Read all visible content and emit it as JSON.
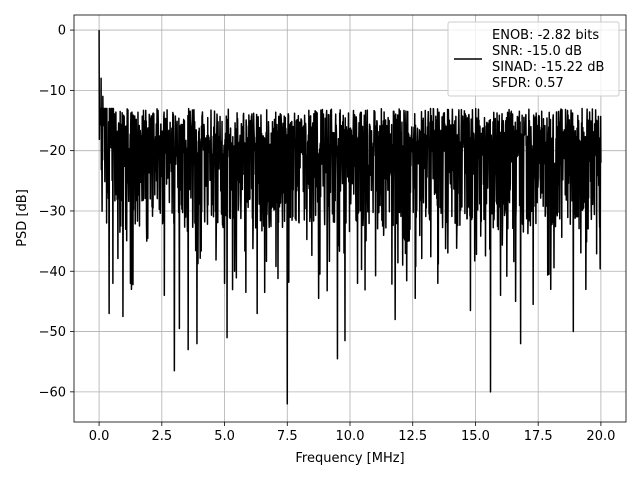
{
  "chart_data": {
    "type": "line",
    "title": "",
    "xlabel": "Frequency [MHz]",
    "ylabel": "PSD [dB]",
    "xlim": [
      -1.0,
      21.0
    ],
    "ylim": [
      -65.0,
      2.5
    ],
    "x_ticks": [
      0.0,
      2.5,
      5.0,
      7.5,
      10.0,
      12.5,
      15.0,
      17.5,
      20.0
    ],
    "x_tick_labels": [
      "0.0",
      "2.5",
      "5.0",
      "7.5",
      "10.0",
      "12.5",
      "15.0",
      "17.5",
      "20.0"
    ],
    "y_ticks": [
      0,
      -10,
      -20,
      -30,
      -40,
      -50,
      -60
    ],
    "y_tick_labels": [
      "0",
      "−10",
      "−20",
      "−30",
      "−40",
      "−50",
      "−60"
    ],
    "grid": true,
    "legend_position": "top-right",
    "series": [
      {
        "color": "#000000",
        "x_range": [
          0.0,
          20.0
        ],
        "noise_band": {
          "upper_typical": -15,
          "lower_typical": -42,
          "median": -25
        },
        "notable_points": [
          {
            "x": 0.0,
            "y": 0.0
          },
          {
            "x": 0.08,
            "y": -8.0
          },
          {
            "x": 0.15,
            "y": -11.0
          },
          {
            "x": 0.3,
            "y": -32.0
          },
          {
            "x": 0.4,
            "y": -47.0
          },
          {
            "x": 0.55,
            "y": -42.0
          },
          {
            "x": 0.95,
            "y": -47.5
          },
          {
            "x": 1.25,
            "y": -42.0
          },
          {
            "x": 1.9,
            "y": -35.0
          },
          {
            "x": 2.6,
            "y": -44.0
          },
          {
            "x": 3.0,
            "y": -56.5
          },
          {
            "x": 3.2,
            "y": -49.5
          },
          {
            "x": 3.55,
            "y": -53.0
          },
          {
            "x": 3.9,
            "y": -52.0
          },
          {
            "x": 5.0,
            "y": -42.0
          },
          {
            "x": 5.1,
            "y": -51.0
          },
          {
            "x": 5.4,
            "y": -40.0
          },
          {
            "x": 5.85,
            "y": -43.5
          },
          {
            "x": 6.3,
            "y": -47.0
          },
          {
            "x": 6.6,
            "y": -43.5
          },
          {
            "x": 7.5,
            "y": -62.0
          },
          {
            "x": 8.75,
            "y": -44.5
          },
          {
            "x": 9.5,
            "y": -54.5
          },
          {
            "x": 9.8,
            "y": -51.5
          },
          {
            "x": 10.3,
            "y": -42.0
          },
          {
            "x": 11.8,
            "y": -48.0
          },
          {
            "x": 12.6,
            "y": -44.5
          },
          {
            "x": 13.5,
            "y": -42.0
          },
          {
            "x": 14.8,
            "y": -46.5
          },
          {
            "x": 15.6,
            "y": -60.0
          },
          {
            "x": 16.0,
            "y": -44.0
          },
          {
            "x": 16.6,
            "y": -45.0
          },
          {
            "x": 16.8,
            "y": -52.0
          },
          {
            "x": 17.3,
            "y": -45.5
          },
          {
            "x": 18.0,
            "y": -43.0
          },
          {
            "x": 18.9,
            "y": -50.0
          },
          {
            "x": 19.4,
            "y": -43.0
          },
          {
            "x": 20.0,
            "y": -22.0
          }
        ]
      }
    ],
    "legend": {
      "lines": [
        "ENOB: -2.82 bits",
        "SNR: -15.0 dB",
        "SINAD: -15.22 dB",
        "SFDR: 0.57"
      ]
    }
  }
}
